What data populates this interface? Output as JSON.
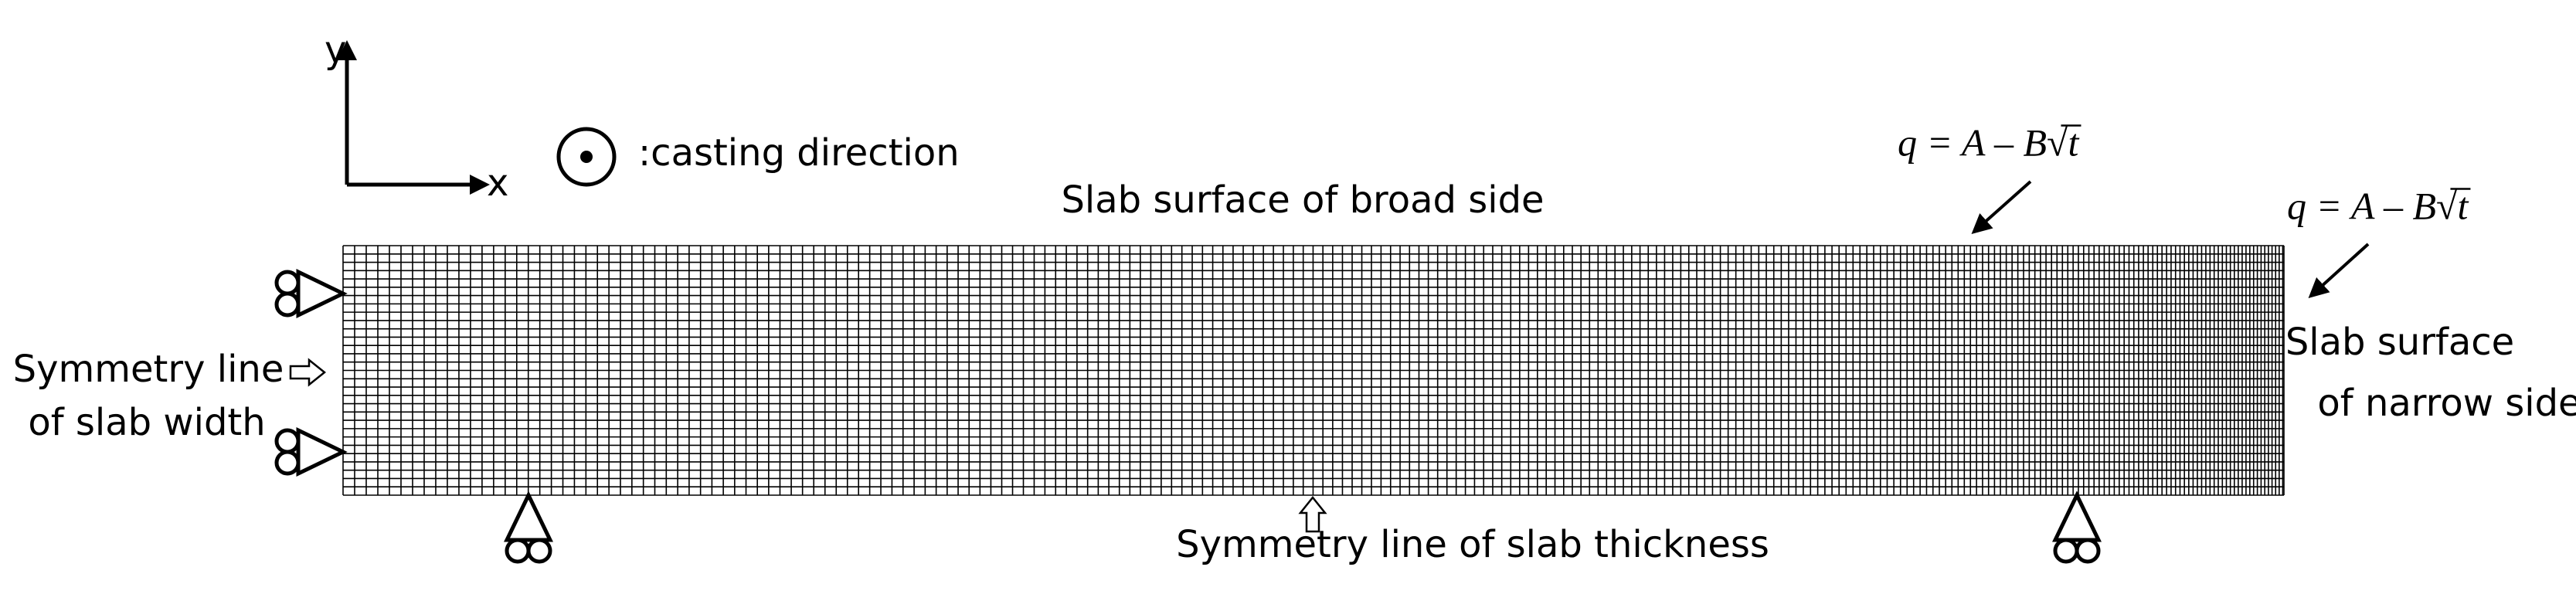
{
  "axes": {
    "y_label": "y",
    "x_label": "x"
  },
  "legend": {
    "casting": ":casting direction"
  },
  "labels": {
    "broad_side": "Slab surface of broad side",
    "narrow_side": [
      "Slab surface",
      "of narrow side"
    ],
    "symmetry_width": [
      "Symmetry line",
      "of slab width"
    ],
    "symmetry_thickness": "Symmetry line of slab thickness"
  },
  "formulas": [
    {
      "text": "q = A – B√t"
    },
    {
      "text": "q = A – B√t"
    }
  ]
}
